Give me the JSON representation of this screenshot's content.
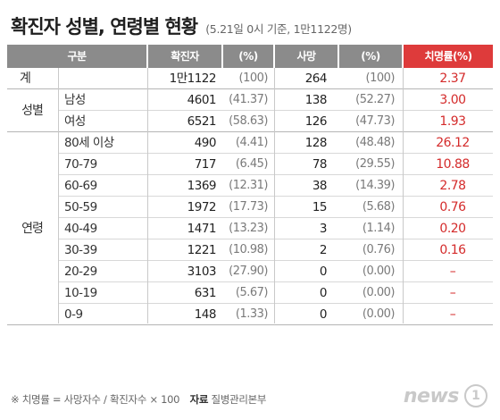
{
  "title": "확진자 성별, 연령별 현황",
  "subtitle": "(5.21일 0시 기준, 1만1122명)",
  "chart_data": {
    "type": "table",
    "columns": [
      "구분",
      "확진자",
      "(%)",
      "사망",
      "(%)",
      "치명률(%)"
    ],
    "rows": [
      {
        "group": "계",
        "sub": "",
        "cases": "1만1122",
        "cases_pct": "(100)",
        "deaths": "264",
        "deaths_pct": "(100)",
        "fatality": "2.37"
      },
      {
        "group": "성별",
        "sub": "남성",
        "cases": "4601",
        "cases_pct": "(41.37)",
        "deaths": "138",
        "deaths_pct": "(52.27)",
        "fatality": "3.00"
      },
      {
        "group": "",
        "sub": "여성",
        "cases": "6521",
        "cases_pct": "(58.63)",
        "deaths": "126",
        "deaths_pct": "(47.73)",
        "fatality": "1.93"
      },
      {
        "group": "",
        "sub": "80세 이상",
        "cases": "490",
        "cases_pct": "(4.41)",
        "deaths": "128",
        "deaths_pct": "(48.48)",
        "fatality": "26.12"
      },
      {
        "group": "",
        "sub": "70-79",
        "cases": "717",
        "cases_pct": "(6.45)",
        "deaths": "78",
        "deaths_pct": "(29.55)",
        "fatality": "10.88"
      },
      {
        "group": "",
        "sub": "60-69",
        "cases": "1369",
        "cases_pct": "(12.31)",
        "deaths": "38",
        "deaths_pct": "(14.39)",
        "fatality": "2.78"
      },
      {
        "group": "",
        "sub": "50-59",
        "cases": "1972",
        "cases_pct": "(17.73)",
        "deaths": "15",
        "deaths_pct": "(5.68)",
        "fatality": "0.76"
      },
      {
        "group": "연령",
        "sub": "40-49",
        "cases": "1471",
        "cases_pct": "(13.23)",
        "deaths": "3",
        "deaths_pct": "(1.14)",
        "fatality": "0.20"
      },
      {
        "group": "",
        "sub": "30-39",
        "cases": "1221",
        "cases_pct": "(10.98)",
        "deaths": "2",
        "deaths_pct": "(0.76)",
        "fatality": "0.16"
      },
      {
        "group": "",
        "sub": "20-29",
        "cases": "3103",
        "cases_pct": "(27.90)",
        "deaths": "0",
        "deaths_pct": "(0.00)",
        "fatality": "–"
      },
      {
        "group": "",
        "sub": "10-19",
        "cases": "631",
        "cases_pct": "(5.67)",
        "deaths": "0",
        "deaths_pct": "(0.00)",
        "fatality": "–"
      },
      {
        "group": "",
        "sub": "0-9",
        "cases": "148",
        "cases_pct": "(1.33)",
        "deaths": "0",
        "deaths_pct": "(0.00)",
        "fatality": "–"
      }
    ],
    "colors": {
      "header_grey": "#8b8b8b",
      "header_red": "#de3b3b",
      "fatality_text": "#d42b2b"
    }
  },
  "footnote": {
    "formula": "※ 치명률 = 사망자수 / 확진자수 × 100",
    "source_label": "자료",
    "source": "질병관리본부"
  },
  "logo": {
    "text": "news",
    "mark": "1"
  }
}
